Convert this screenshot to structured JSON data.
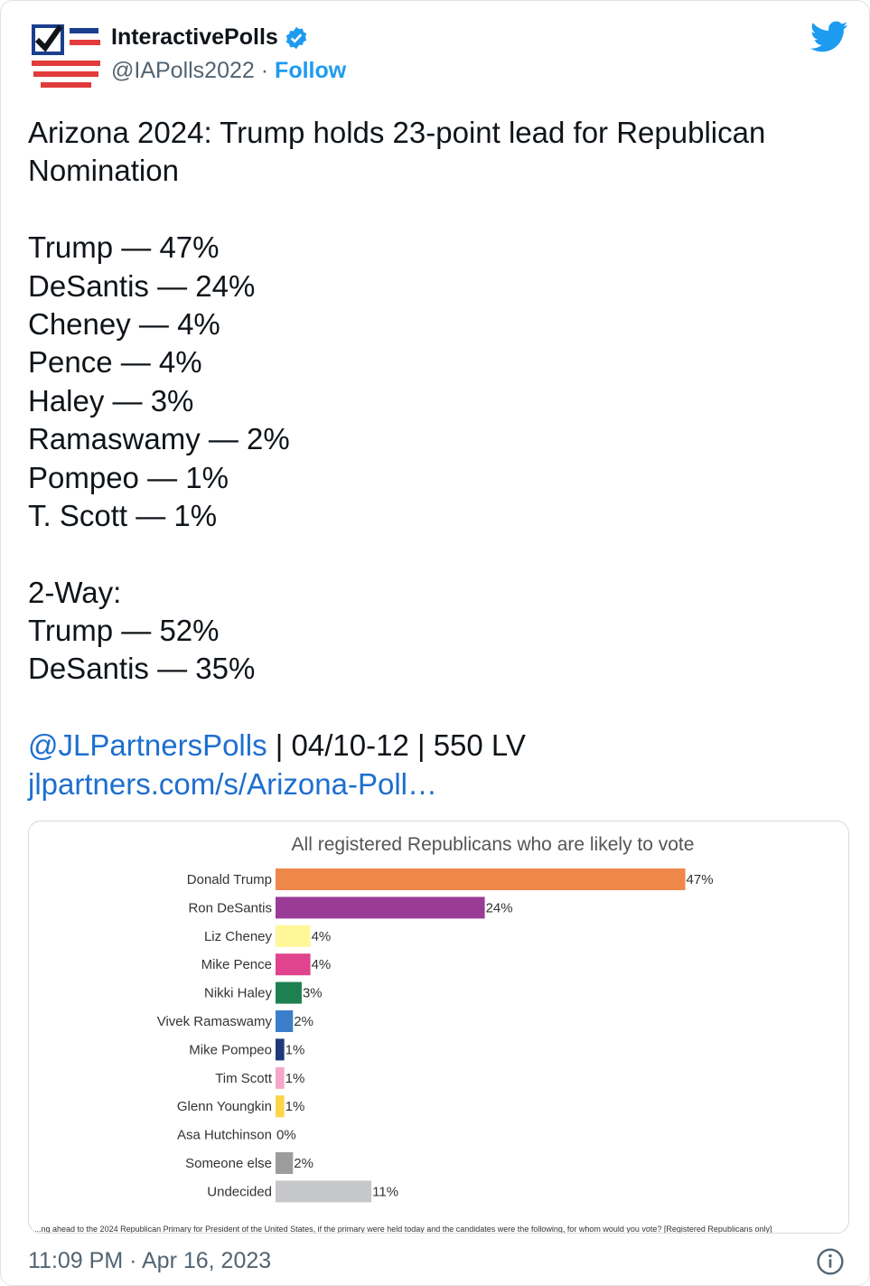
{
  "author": {
    "display_name": "InteractivePolls",
    "handle": "@IAPolls2022",
    "separator": "·",
    "follow_label": "Follow",
    "verified_color": "#1d9bf0"
  },
  "tweet": {
    "lines": [
      "Arizona 2024: Trump holds 23-point lead for Republican",
      "Nomination",
      "",
      "Trump — 47%",
      "DeSantis — 24%",
      "Cheney — 4%",
      "Pence — 4%",
      "Haley — 3%",
      "Ramaswamy — 2%",
      "Pompeo — 1%",
      "T. Scott — 1%",
      "",
      "2-Way:",
      "Trump — 52%",
      "DeSantis — 35%",
      ""
    ],
    "mention": "@JLPartnersPolls",
    "meta_text": " | 04/10-12 | 550 LV",
    "link_text": "jlpartners.com/s/Arizona-Poll…"
  },
  "chart_data": {
    "type": "bar",
    "orientation": "horizontal",
    "title": "All registered Republicans who are likely to vote",
    "categories": [
      "Donald Trump",
      "Ron DeSantis",
      "Liz Cheney",
      "Mike Pence",
      "Nikki Haley",
      "Vivek Ramaswamy",
      "Mike Pompeo",
      "Tim Scott",
      "Glenn Youngkin",
      "Asa Hutchinson",
      "Someone else",
      "Undecided"
    ],
    "values": [
      47,
      24,
      4,
      4,
      3,
      2,
      1,
      1,
      1,
      0,
      2,
      11
    ],
    "value_labels": [
      "47%",
      "24%",
      "4%",
      "4%",
      "3%",
      "2%",
      "1%",
      "1%",
      "1%",
      "0%",
      "2%",
      "11%"
    ],
    "colors": [
      "#f0874a",
      "#9a3c96",
      "#fff799",
      "#e0448e",
      "#1e8050",
      "#3a7dc9",
      "#1e3a78",
      "#f5a8c8",
      "#fcd54a",
      "#ffffff",
      "#9c9c9c",
      "#c5c7c9"
    ],
    "footnote": "...ng ahead to the 2024 Republican Primary for President of the United States, if the primary were held today and the candidates were the following, for whom would you vote? [Registered Republicans only]"
  },
  "footer": {
    "timestamp": "11:09 PM · Apr 16, 2023"
  },
  "icons": {
    "twitter": "twitter-bird-icon",
    "info": "info-icon",
    "verified": "verified-badge-icon"
  }
}
